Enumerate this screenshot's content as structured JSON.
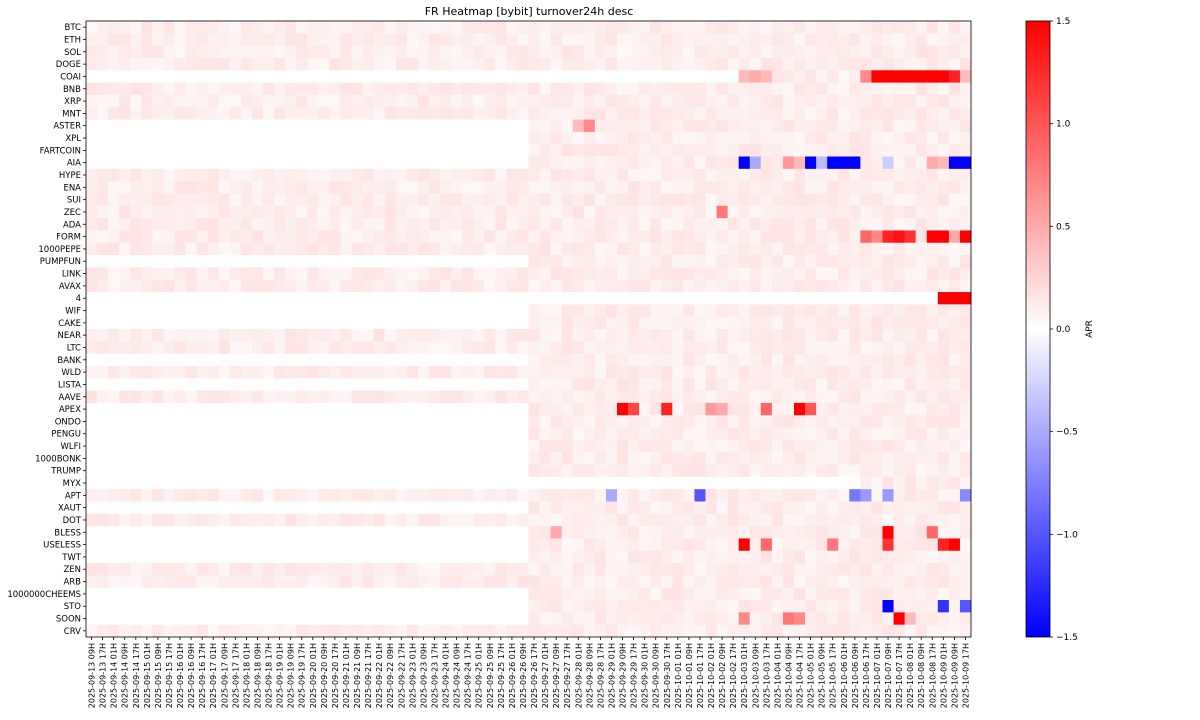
{
  "chart_data": {
    "type": "heatmap",
    "title": "FR Heatmap [bybit] turnover24h desc",
    "ylabel": "",
    "xlabel": "",
    "colorbar": {
      "label": "APR",
      "range": [
        -1.5,
        1.5
      ],
      "ticks": [
        "1.5",
        "1.0",
        "0.5",
        "0.0",
        "−0.5",
        "−1.0",
        "−1.5"
      ],
      "colors": {
        "low": "#0000ff",
        "mid": "#ffffff",
        "high": "#ff0000"
      }
    },
    "rows": [
      "BTC",
      "ETH",
      "SOL",
      "DOGE",
      "COAI",
      "BNB",
      "XRP",
      "MNT",
      "ASTER",
      "XPL",
      "FARTCOIN",
      "AIA",
      "HYPE",
      "ENA",
      "SUI",
      "ZEC",
      "ADA",
      "FORM",
      "1000PEPE",
      "PUMPFUN",
      "LINK",
      "AVAX",
      "4",
      "WIF",
      "CAKE",
      "NEAR",
      "LTC",
      "BANK",
      "WLD",
      "LISTA",
      "AAVE",
      "APEX",
      "ONDO",
      "PENGU",
      "WLFI",
      "1000BONK",
      "TRUMP",
      "MYX",
      "APT",
      "XAUT",
      "DOT",
      "BLESS",
      "USELESS",
      "TWT",
      "ZEN",
      "ARB",
      "1000000CHEEMS",
      "STO",
      "SOON",
      "CRV"
    ],
    "x_tick_labels": [
      "2025-09-13 09H",
      "2025-09-13 17H",
      "2025-09-14 01H",
      "2025-09-14 09H",
      "2025-09-14 17H",
      "2025-09-15 01H",
      "2025-09-15 09H",
      "2025-09-15 17H",
      "2025-09-16 01H",
      "2025-09-16 09H",
      "2025-09-16 17H",
      "2025-09-17 01H",
      "2025-09-17 09H",
      "2025-09-17 17H",
      "2025-09-18 01H",
      "2025-09-18 09H",
      "2025-09-18 17H",
      "2025-09-19 01H",
      "2025-09-19 09H",
      "2025-09-19 17H",
      "2025-09-20 01H",
      "2025-09-20 09H",
      "2025-09-20 17H",
      "2025-09-21 01H",
      "2025-09-21 09H",
      "2025-09-21 17H",
      "2025-09-22 01H",
      "2025-09-22 09H",
      "2025-09-22 17H",
      "2025-09-23 01H",
      "2025-09-23 09H",
      "2025-09-23 17H",
      "2025-09-24 01H",
      "2025-09-24 09H",
      "2025-09-24 17H",
      "2025-09-25 01H",
      "2025-09-25 09H",
      "2025-09-25 17H",
      "2025-09-26 01H",
      "2025-09-26 09H",
      "2025-09-26 17H",
      "2025-09-27 01H",
      "2025-09-27 09H",
      "2025-09-27 17H",
      "2025-09-28 01H",
      "2025-09-28 09H",
      "2025-09-28 17H",
      "2025-09-29 01H",
      "2025-09-29 09H",
      "2025-09-29 17H",
      "2025-09-30 01H",
      "2025-09-30 09H",
      "2025-09-30 17H",
      "2025-10-01 01H",
      "2025-10-01 09H",
      "2025-10-01 17H",
      "2025-10-02 01H",
      "2025-10-02 09H",
      "2025-10-02 17H",
      "2025-10-03 01H",
      "2025-10-03 09H",
      "2025-10-03 17H",
      "2025-10-04 01H",
      "2025-10-04 09H",
      "2025-10-04 17H",
      "2025-10-05 01H",
      "2025-10-05 09H",
      "2025-10-05 17H",
      "2025-10-06 01H",
      "2025-10-06 09H",
      "2025-10-06 17H",
      "2025-10-07 01H",
      "2025-10-07 09H",
      "2025-10-07 17H",
      "2025-10-08 01H",
      "2025-10-08 09H",
      "2025-10-08 17H",
      "2025-10-09 01H",
      "2025-10-09 09H",
      "2025-10-09 17H"
    ],
    "cells_per_tick": 1,
    "baseline_apr": 0.1,
    "rows_listed_from_start": [
      "BTC",
      "ETH",
      "SOL",
      "DOGE",
      "BNB",
      "XRP",
      "MNT",
      "HYPE",
      "ENA",
      "SUI",
      "ZEC",
      "ADA",
      "FORM",
      "1000PEPE",
      "LINK",
      "AVAX",
      "NEAR",
      "LTC",
      "WLD",
      "AAVE",
      "APT",
      "DOT",
      "ZEN",
      "ARB",
      "CRV"
    ],
    "listing_start_tick": {
      "ASTER": "2025-09-26 17H",
      "XPL": "2025-09-26 17H",
      "FARTCOIN": "2025-09-26 17H",
      "AIA": "2025-09-26 17H",
      "WIF": "2025-09-26 17H",
      "CAKE": "2025-09-26 17H",
      "BANK": "2025-09-26 17H",
      "LISTA": "2025-09-26 17H",
      "APEX": "2025-09-26 17H",
      "ONDO": "2025-09-26 17H",
      "PENGU": "2025-09-26 17H",
      "WLFI": "2025-09-26 17H",
      "1000BONK": "2025-09-26 17H",
      "TRUMP": "2025-09-26 17H",
      "XAUT": "2025-09-26 17H",
      "BLESS": "2025-09-26 17H",
      "USELESS": "2025-09-26 17H",
      "TWT": "2025-09-26 17H",
      "1000000CHEEMS": "2025-09-26 17H",
      "STO": "2025-09-26 17H",
      "SOON": "2025-09-26 17H",
      "PUMPFUN": "2025-09-26 17H",
      "COAI": "2025-10-03 01H",
      "MYX": "2025-10-06 17H",
      "4": "2025-10-09 01H"
    },
    "highlights": [
      {
        "row": "COAI",
        "x": "2025-10-03 01H",
        "apr": 0.4
      },
      {
        "row": "COAI",
        "x": "2025-10-03 09H",
        "apr": 0.5
      },
      {
        "row": "COAI",
        "x": "2025-10-03 17H",
        "apr": 0.4
      },
      {
        "row": "COAI",
        "x": "2025-10-06 17H",
        "apr": 0.7
      },
      {
        "row": "COAI",
        "x": "2025-10-07 01H",
        "apr": 1.5
      },
      {
        "row": "COAI",
        "x": "2025-10-07 09H",
        "apr": 1.5
      },
      {
        "row": "COAI",
        "x": "2025-10-07 17H",
        "apr": 1.5
      },
      {
        "row": "COAI",
        "x": "2025-10-08 01H",
        "apr": 1.5
      },
      {
        "row": "COAI",
        "x": "2025-10-08 09H",
        "apr": 1.5
      },
      {
        "row": "COAI",
        "x": "2025-10-08 17H",
        "apr": 1.5
      },
      {
        "row": "COAI",
        "x": "2025-10-09 01H",
        "apr": 1.5
      },
      {
        "row": "COAI",
        "x": "2025-10-09 09H",
        "apr": 1.3
      },
      {
        "row": "COAI",
        "x": "2025-10-09 17H",
        "apr": 0.4
      },
      {
        "row": "ASTER",
        "x": "2025-09-28 09H",
        "apr": 0.7
      },
      {
        "row": "ASTER",
        "x": "2025-09-28 01H",
        "apr": 0.4
      },
      {
        "row": "AIA",
        "x": "2025-10-03 01H",
        "apr": -1.5
      },
      {
        "row": "AIA",
        "x": "2025-10-03 09H",
        "apr": -0.5
      },
      {
        "row": "AIA",
        "x": "2025-10-04 09H",
        "apr": 0.6
      },
      {
        "row": "AIA",
        "x": "2025-10-04 17H",
        "apr": 0.4
      },
      {
        "row": "AIA",
        "x": "2025-10-05 01H",
        "apr": -1.5
      },
      {
        "row": "AIA",
        "x": "2025-10-05 09H",
        "apr": -0.4
      },
      {
        "row": "AIA",
        "x": "2025-10-05 17H",
        "apr": -1.5
      },
      {
        "row": "AIA",
        "x": "2025-10-06 01H",
        "apr": -1.5
      },
      {
        "row": "AIA",
        "x": "2025-10-06 09H",
        "apr": -1.5
      },
      {
        "row": "AIA",
        "x": "2025-10-07 09H",
        "apr": -0.3
      },
      {
        "row": "AIA",
        "x": "2025-10-08 17H",
        "apr": 0.5
      },
      {
        "row": "AIA",
        "x": "2025-10-09 01H",
        "apr": 0.4
      },
      {
        "row": "AIA",
        "x": "2025-10-09 09H",
        "apr": -1.5
      },
      {
        "row": "AIA",
        "x": "2025-10-09 17H",
        "apr": -1.5
      },
      {
        "row": "ZEC",
        "x": "2025-10-02 09H",
        "apr": 0.8
      },
      {
        "row": "FORM",
        "x": "2025-10-06 17H",
        "apr": 0.9
      },
      {
        "row": "FORM",
        "x": "2025-10-07 01H",
        "apr": 0.7
      },
      {
        "row": "FORM",
        "x": "2025-10-07 09H",
        "apr": 1.3
      },
      {
        "row": "FORM",
        "x": "2025-10-07 17H",
        "apr": 1.4
      },
      {
        "row": "FORM",
        "x": "2025-10-08 01H",
        "apr": 1.2
      },
      {
        "row": "FORM",
        "x": "2025-10-08 17H",
        "apr": 1.5
      },
      {
        "row": "FORM",
        "x": "2025-10-09 01H",
        "apr": 1.5
      },
      {
        "row": "FORM",
        "x": "2025-10-09 09H",
        "apr": 0.5
      },
      {
        "row": "FORM",
        "x": "2025-10-09 17H",
        "apr": 1.5
      },
      {
        "row": "4",
        "x": "2025-10-09 01H",
        "apr": 1.5
      },
      {
        "row": "4",
        "x": "2025-10-09 09H",
        "apr": 1.5
      },
      {
        "row": "4",
        "x": "2025-10-09 17H",
        "apr": 1.5
      },
      {
        "row": "APEX",
        "x": "2025-09-29 09H",
        "apr": 1.5
      },
      {
        "row": "APEX",
        "x": "2025-09-29 17H",
        "apr": 1.1
      },
      {
        "row": "APEX",
        "x": "2025-09-30 17H",
        "apr": 1.3
      },
      {
        "row": "APEX",
        "x": "2025-10-03 17H",
        "apr": 0.9
      },
      {
        "row": "APEX",
        "x": "2025-10-04 17H",
        "apr": 1.5
      },
      {
        "row": "APEX",
        "x": "2025-10-05 01H",
        "apr": 1.0
      },
      {
        "row": "APEX",
        "x": "2025-10-02 01H",
        "apr": 0.6
      },
      {
        "row": "APEX",
        "x": "2025-10-02 09H",
        "apr": 0.5
      },
      {
        "row": "APT",
        "x": "2025-09-29 01H",
        "apr": -0.5
      },
      {
        "row": "APT",
        "x": "2025-10-01 17H",
        "apr": -1.0
      },
      {
        "row": "APT",
        "x": "2025-10-06 09H",
        "apr": -0.8
      },
      {
        "row": "APT",
        "x": "2025-10-06 17H",
        "apr": -0.6
      },
      {
        "row": "APT",
        "x": "2025-10-07 09H",
        "apr": -0.6
      },
      {
        "row": "APT",
        "x": "2025-10-09 17H",
        "apr": -0.7
      },
      {
        "row": "BLESS",
        "x": "2025-10-07 09H",
        "apr": 1.5
      },
      {
        "row": "BLESS",
        "x": "2025-10-08 17H",
        "apr": 0.9
      },
      {
        "row": "BLESS",
        "x": "2025-09-27 09H",
        "apr": 0.5
      },
      {
        "row": "USELESS",
        "x": "2025-10-03 01H",
        "apr": 1.5
      },
      {
        "row": "USELESS",
        "x": "2025-10-03 17H",
        "apr": 0.9
      },
      {
        "row": "USELESS",
        "x": "2025-10-05 17H",
        "apr": 0.8
      },
      {
        "row": "USELESS",
        "x": "2025-10-07 09H",
        "apr": 1.2
      },
      {
        "row": "USELESS",
        "x": "2025-10-09 01H",
        "apr": 1.3
      },
      {
        "row": "USELESS",
        "x": "2025-10-09 09H",
        "apr": 1.5
      },
      {
        "row": "STO",
        "x": "2025-10-07 09H",
        "apr": -1.5
      },
      {
        "row": "STO",
        "x": "2025-10-09 01H",
        "apr": -1.2
      },
      {
        "row": "STO",
        "x": "2025-10-09 17H",
        "apr": -1.0
      },
      {
        "row": "SOON",
        "x": "2025-10-03 01H",
        "apr": 0.7
      },
      {
        "row": "SOON",
        "x": "2025-10-04 09H",
        "apr": 0.8
      },
      {
        "row": "SOON",
        "x": "2025-10-04 17H",
        "apr": 0.7
      },
      {
        "row": "SOON",
        "x": "2025-10-07 17H",
        "apr": 1.5
      },
      {
        "row": "SOON",
        "x": "2025-10-08 01H",
        "apr": 0.4
      }
    ]
  }
}
